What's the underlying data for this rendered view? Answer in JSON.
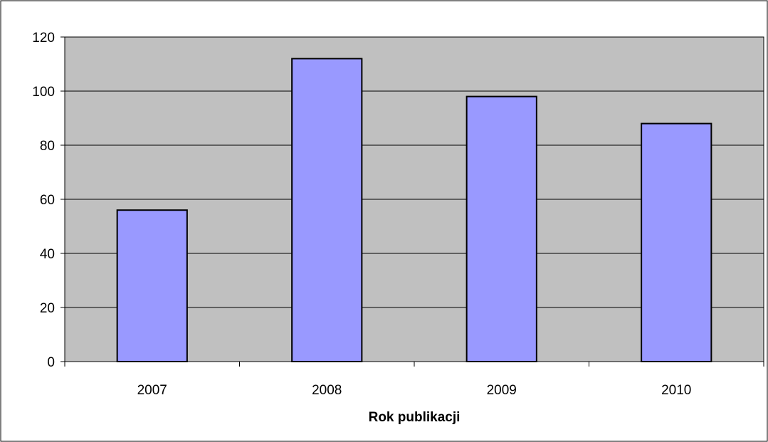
{
  "chart_data": {
    "type": "bar",
    "title": "",
    "xlabel": "Rok publikacji",
    "ylabel": "",
    "categories": [
      "2007",
      "2008",
      "2009",
      "2010"
    ],
    "values": [
      56,
      112,
      98,
      88
    ],
    "ylim": [
      0,
      120
    ],
    "yticks": [
      0,
      20,
      40,
      60,
      80,
      100,
      120
    ],
    "grid": true,
    "legend": "none",
    "colors": {
      "bar_fill": "#9999ff",
      "bar_stroke": "#000000",
      "plot_background": "#c0c0c0",
      "gridline": "#000000",
      "frame": "#000000"
    }
  }
}
